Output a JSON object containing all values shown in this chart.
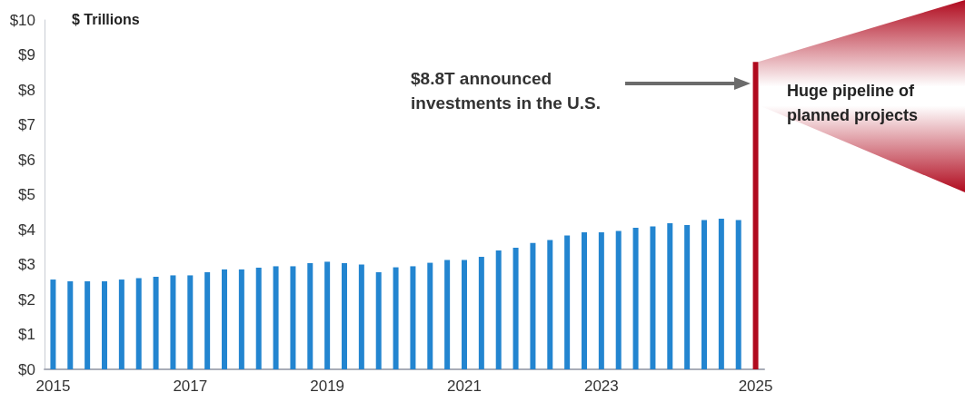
{
  "chart_data": {
    "type": "bar",
    "ylabel": "$ Trillions",
    "categories": [
      "2015",
      null,
      null,
      null,
      null,
      null,
      null,
      null,
      "2017",
      null,
      null,
      null,
      null,
      null,
      null,
      null,
      "2019",
      null,
      null,
      null,
      null,
      null,
      null,
      null,
      "2021",
      null,
      null,
      null,
      null,
      null,
      null,
      null,
      "2023",
      null,
      null,
      null,
      null,
      null,
      null,
      null,
      null,
      "2025"
    ],
    "values": [
      2.57,
      2.52,
      2.52,
      2.52,
      2.57,
      2.61,
      2.65,
      2.69,
      2.69,
      2.78,
      2.86,
      2.86,
      2.91,
      2.95,
      2.95,
      3.04,
      3.08,
      3.04,
      3.0,
      2.78,
      2.92,
      2.95,
      3.05,
      3.13,
      3.13,
      3.22,
      3.4,
      3.48,
      3.62,
      3.7,
      3.83,
      3.92,
      3.92,
      3.96,
      4.05,
      4.09,
      4.18,
      4.13,
      4.27,
      4.31,
      4.27,
      8.8
    ],
    "colors": [
      "#2385d0",
      "#2385d0",
      "#2385d0",
      "#2385d0",
      "#2385d0",
      "#2385d0",
      "#2385d0",
      "#2385d0",
      "#2385d0",
      "#2385d0",
      "#2385d0",
      "#2385d0",
      "#2385d0",
      "#2385d0",
      "#2385d0",
      "#2385d0",
      "#2385d0",
      "#2385d0",
      "#2385d0",
      "#2385d0",
      "#2385d0",
      "#2385d0",
      "#2385d0",
      "#2385d0",
      "#2385d0",
      "#2385d0",
      "#2385d0",
      "#2385d0",
      "#2385d0",
      "#2385d0",
      "#2385d0",
      "#2385d0",
      "#2385d0",
      "#2385d0",
      "#2385d0",
      "#2385d0",
      "#2385d0",
      "#2385d0",
      "#2385d0",
      "#2385d0",
      "#2385d0",
      "#b00a1e"
    ],
    "ylim": [
      0,
      10
    ],
    "yticks": [
      {
        "value": 0,
        "label": "$0"
      },
      {
        "value": 1,
        "label": "$1"
      },
      {
        "value": 2,
        "label": "$2"
      },
      {
        "value": 3,
        "label": "$3"
      },
      {
        "value": 4,
        "label": "$4"
      },
      {
        "value": 5,
        "label": "$5"
      },
      {
        "value": 6,
        "label": "$6"
      },
      {
        "value": 7,
        "label": "$7"
      },
      {
        "value": 8,
        "label": "$8"
      },
      {
        "value": 9,
        "label": "$9"
      },
      {
        "value": 10,
        "label": "$10"
      }
    ],
    "annotations": [
      "$8.8T announced investments in the U.S.",
      "Huge pipeline of planned projects"
    ]
  }
}
